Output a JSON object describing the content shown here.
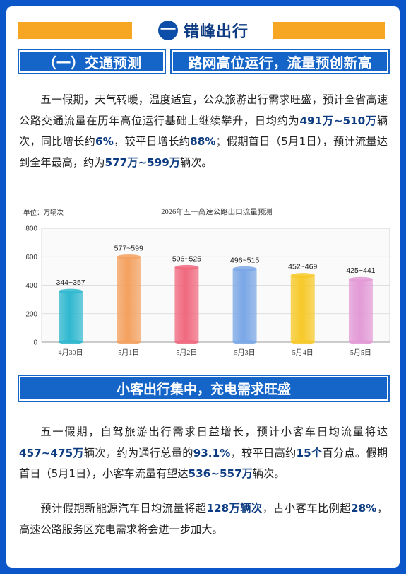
{
  "header": {
    "number": "一",
    "title": "错峰出行"
  },
  "section1": {
    "tag": "（一）交通预测",
    "headline": "路网高位运行，流量预创新高",
    "para": [
      {
        "t": "五一假期，天气转暖，温度适宜，公众旅游出行需求旺盛，预计全省高速公路交通流量在历年高位运行基础上继续攀升，日均约为"
      },
      {
        "t": "491万~510万",
        "b": true
      },
      {
        "t": "辆次，同比增长约"
      },
      {
        "t": "6%",
        "b": true
      },
      {
        "t": "，较平日增长约"
      },
      {
        "t": "88%",
        "b": true
      },
      {
        "t": "；假期首日（5月1日），预计流量达到全年最高，约为"
      },
      {
        "t": "577万~599万",
        "b": true
      },
      {
        "t": "辆次。"
      }
    ]
  },
  "chart_data": {
    "type": "bar",
    "title": "2026年五一高速公路出口流量预测",
    "unit_label": "单位：万辆次",
    "categories": [
      "4月30日",
      "5月1日",
      "5月2日",
      "5月3日",
      "5月4日",
      "5月5日"
    ],
    "values": [
      {
        "low": 344,
        "high": 357
      },
      {
        "low": 577,
        "high": 599
      },
      {
        "low": 506,
        "high": 525
      },
      {
        "low": 496,
        "high": 515
      },
      {
        "low": 452,
        "high": 469
      },
      {
        "low": 425,
        "high": 441
      }
    ],
    "data_labels": [
      "344~357",
      "577~599",
      "506~525",
      "496~515",
      "452~469",
      "425~441"
    ],
    "yticks": [
      "0",
      "200",
      "400",
      "600",
      "800"
    ],
    "ylim": [
      0,
      800
    ],
    "grid": true,
    "colors": [
      "#2fb8cf",
      "#f4a15f",
      "#f0697e",
      "#7aa7e6",
      "#f7c928",
      "#e39ad6"
    ]
  },
  "section2": {
    "headline": "小客出行集中，充电需求旺盛",
    "para1": [
      {
        "t": "五一假期，自驾旅游出行需求日益增长，预计小客车日均流量将达"
      },
      {
        "t": "457~475万",
        "b": true
      },
      {
        "t": "辆次，约为通行总量的"
      },
      {
        "t": "93.1%",
        "b": true
      },
      {
        "t": "，较平日高约"
      },
      {
        "t": "15个",
        "b": true
      },
      {
        "t": "百分点。假期首日（5月1日），小客车流量有望达"
      },
      {
        "t": "536~557万",
        "b": true
      },
      {
        "t": "辆次。"
      }
    ],
    "para2": [
      {
        "t": "预计假期新能源汽车日均流量将超"
      },
      {
        "t": "128万辆次",
        "b": true
      },
      {
        "t": "，占小客车比例超"
      },
      {
        "t": "28%",
        "b": true
      },
      {
        "t": "，高速公路服务区充电需求将会进一步加大。"
      }
    ]
  }
}
